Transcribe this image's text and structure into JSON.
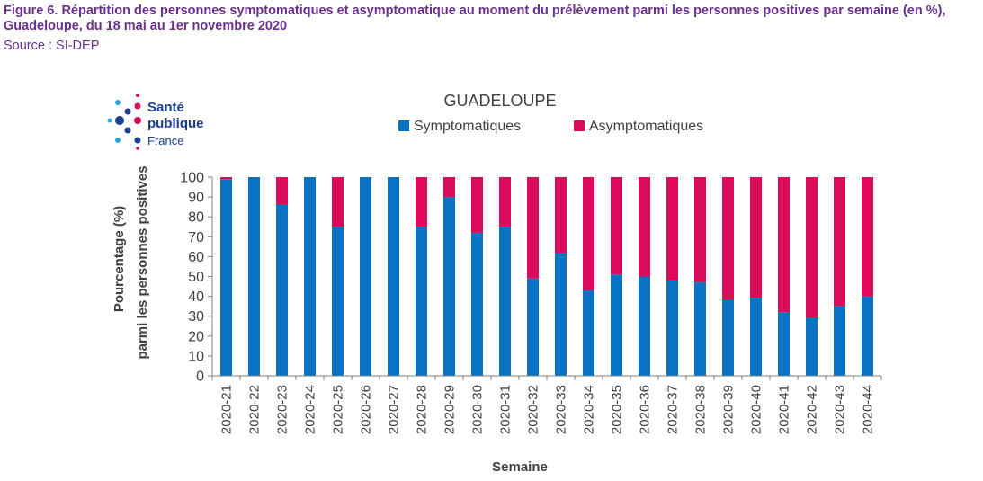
{
  "caption": {
    "title": "Figure 6. Répartition des personnes symptomatiques et asymptomatique au moment du prélèvement parmi les personnes positives par semaine (en %), Guadeloupe, du 18 mai au 1er novembre 2020",
    "source": "Source : SI-DEP"
  },
  "logo": {
    "line1": "Santé",
    "line2": "publique",
    "line3": "France"
  },
  "colors": {
    "symptomatic": "#0a72c2",
    "asymptomatic": "#dc0a5a",
    "caption": "#6a2f8c",
    "axis_text": "#404040"
  },
  "chart_data": {
    "type": "bar",
    "stacked": true,
    "title": "GUADELOUPE",
    "xlabel": "Semaine",
    "ylabel_line1": "Pourcentage (%)",
    "ylabel_line2": "parmi les  personnes positives",
    "ylim": [
      0,
      100
    ],
    "yticks": [
      0,
      10,
      20,
      30,
      40,
      50,
      60,
      70,
      80,
      90,
      100
    ],
    "legend_position": "top",
    "categories": [
      "2020-21",
      "2020-22",
      "2020-23",
      "2020-24",
      "2020-25",
      "2020-26",
      "2020-27",
      "2020-28",
      "2020-29",
      "2020-30",
      "2020-31",
      "2020-32",
      "2020-33",
      "2020-34",
      "2020-35",
      "2020-36",
      "2020-37",
      "2020-38",
      "2020-39",
      "2020-40",
      "2020-41",
      "2020-42",
      "2020-43",
      "2020-44"
    ],
    "series": [
      {
        "name": "Symptomatiques",
        "values": [
          99,
          100,
          86,
          100,
          75,
          100,
          100,
          75,
          90,
          72,
          75,
          49,
          62,
          43,
          51,
          50,
          48,
          47,
          38,
          39,
          32,
          29,
          35,
          40
        ]
      },
      {
        "name": "Asymptomatiques",
        "values": [
          1,
          0,
          14,
          0,
          25,
          0,
          0,
          25,
          10,
          28,
          25,
          51,
          38,
          57,
          49,
          50,
          52,
          53,
          62,
          61,
          68,
          71,
          65,
          60
        ]
      }
    ]
  }
}
